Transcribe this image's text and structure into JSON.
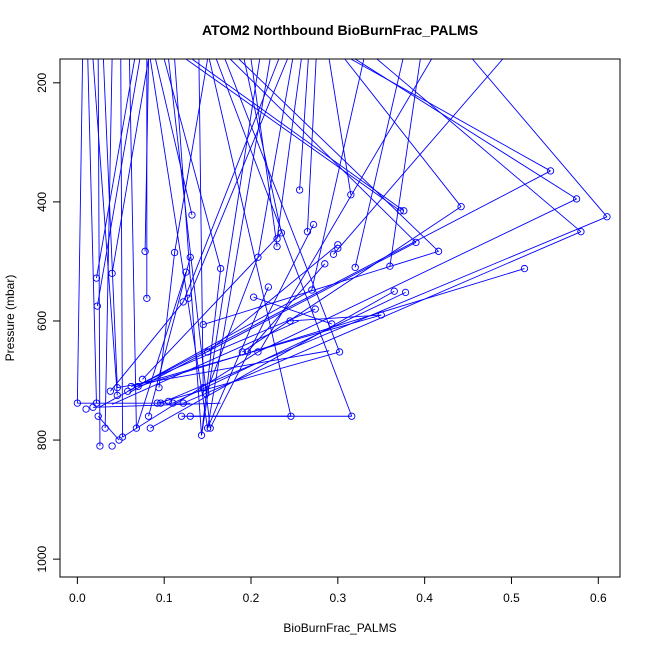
{
  "chart_data": {
    "type": "line",
    "title": "ATOM2 Northbound BioBurnFrac_PALMS",
    "xlabel": "BioBurnFrac_PALMS",
    "ylabel": "Pressure (mbar)",
    "xlim": [
      -0.02,
      0.625
    ],
    "ylim": [
      160,
      1030
    ],
    "y_reversed": true,
    "x_ticks": [
      "0.0",
      "0.1",
      "0.2",
      "0.3",
      "0.4",
      "0.5",
      "0.6"
    ],
    "x_tick_values": [
      0.0,
      0.1,
      0.2,
      0.3,
      0.4,
      0.5,
      0.6
    ],
    "y_ticks": [
      "200",
      "400",
      "600",
      "800",
      "1000"
    ],
    "y_tick_values": [
      200,
      400,
      600,
      800,
      1000
    ],
    "series_color": "#0000ff",
    "grid": false,
    "points": [
      [
        0.0,
        738
      ],
      [
        0.01,
        748
      ],
      [
        0.018,
        745
      ],
      [
        0.022,
        738
      ],
      [
        0.024,
        760
      ],
      [
        0.026,
        810
      ],
      [
        0.032,
        780
      ],
      [
        0.038,
        718
      ],
      [
        0.04,
        810
      ],
      [
        0.046,
        712
      ],
      [
        0.046,
        725
      ],
      [
        0.048,
        800
      ],
      [
        0.052,
        795
      ],
      [
        0.058,
        718
      ],
      [
        0.062,
        710
      ],
      [
        0.068,
        780
      ],
      [
        0.07,
        710
      ],
      [
        0.075,
        698
      ],
      [
        0.082,
        760
      ],
      [
        0.084,
        780
      ],
      [
        0.092,
        738
      ],
      [
        0.094,
        712
      ],
      [
        0.096,
        738
      ],
      [
        0.105,
        735
      ],
      [
        0.11,
        738
      ],
      [
        0.12,
        760
      ],
      [
        0.122,
        738
      ],
      [
        0.13,
        760
      ],
      [
        0.143,
        792
      ],
      [
        0.145,
        712
      ],
      [
        0.148,
        722
      ],
      [
        0.15,
        780
      ],
      [
        0.153,
        780
      ],
      [
        0.15,
        652
      ],
      [
        0.145,
        606
      ],
      [
        0.122,
        568
      ],
      [
        0.128,
        562
      ],
      [
        0.125,
        518
      ],
      [
        0.13,
        493
      ],
      [
        0.112,
        485
      ],
      [
        0.132,
        422
      ],
      [
        0.078,
        483
      ],
      [
        0.08,
        562
      ],
      [
        0.04,
        520
      ],
      [
        0.022,
        528
      ],
      [
        0.023,
        575
      ],
      [
        0.165,
        512
      ],
      [
        0.19,
        652
      ],
      [
        0.196,
        652
      ],
      [
        0.208,
        652
      ],
      [
        0.203,
        560
      ],
      [
        0.208,
        493
      ],
      [
        0.22,
        543
      ],
      [
        0.23,
        475
      ],
      [
        0.23,
        462
      ],
      [
        0.235,
        452
      ],
      [
        0.245,
        600
      ],
      [
        0.246,
        760
      ],
      [
        0.256,
        380
      ],
      [
        0.265,
        450
      ],
      [
        0.27,
        548
      ],
      [
        0.272,
        438
      ],
      [
        0.274,
        580
      ],
      [
        0.285,
        504
      ],
      [
        0.293,
        605
      ],
      [
        0.295,
        488
      ],
      [
        0.3,
        478
      ],
      [
        0.3,
        472
      ],
      [
        0.302,
        652
      ],
      [
        0.315,
        388
      ],
      [
        0.32,
        510
      ],
      [
        0.316,
        760
      ],
      [
        0.35,
        590
      ],
      [
        0.36,
        508
      ],
      [
        0.365,
        550
      ],
      [
        0.372,
        415
      ],
      [
        0.376,
        415
      ],
      [
        0.378,
        552
      ],
      [
        0.39,
        468
      ],
      [
        0.416,
        483
      ],
      [
        0.442,
        408
      ],
      [
        0.515,
        512
      ],
      [
        0.545,
        348
      ],
      [
        0.575,
        395
      ],
      [
        0.58,
        450
      ],
      [
        0.61,
        425
      ]
    ],
    "segments": [
      [
        [
          0.006,
          160
        ],
        [
          0.0,
          738
        ]
      ],
      [
        [
          0.012,
          160
        ],
        [
          0.022,
          738
        ]
      ],
      [
        [
          0.018,
          160
        ],
        [
          0.046,
          725
        ]
      ],
      [
        [
          0.024,
          160
        ],
        [
          0.026,
          810
        ]
      ],
      [
        [
          0.03,
          160
        ],
        [
          0.046,
          712
        ]
      ],
      [
        [
          0.04,
          160
        ],
        [
          0.032,
          780
        ]
      ],
      [
        [
          0.05,
          160
        ],
        [
          0.052,
          795
        ]
      ],
      [
        [
          0.06,
          160
        ],
        [
          0.068,
          780
        ]
      ],
      [
        [
          0.066,
          160
        ],
        [
          0.022,
          528
        ]
      ],
      [
        [
          0.072,
          160
        ],
        [
          0.023,
          575
        ]
      ],
      [
        [
          0.082,
          160
        ],
        [
          0.04,
          520
        ]
      ],
      [
        [
          0.08,
          160
        ],
        [
          0.08,
          562
        ]
      ],
      [
        [
          0.082,
          160
        ],
        [
          0.078,
          483
        ]
      ],
      [
        [
          0.084,
          160
        ],
        [
          0.15,
          780
        ]
      ],
      [
        [
          0.09,
          160
        ],
        [
          0.132,
          422
        ]
      ],
      [
        [
          0.1,
          160
        ],
        [
          0.165,
          512
        ]
      ],
      [
        [
          0.105,
          160
        ],
        [
          0.153,
          780
        ]
      ],
      [
        [
          0.112,
          160
        ],
        [
          0.143,
          792
        ]
      ],
      [
        [
          0.125,
          160
        ],
        [
          0.372,
          415
        ]
      ],
      [
        [
          0.132,
          160
        ],
        [
          0.376,
          415
        ]
      ],
      [
        [
          0.14,
          160
        ],
        [
          0.145,
          722
        ]
      ],
      [
        [
          0.15,
          160
        ],
        [
          0.112,
          485
        ]
      ],
      [
        [
          0.152,
          160
        ],
        [
          0.246,
          760
        ]
      ],
      [
        [
          0.16,
          160
        ],
        [
          0.316,
          760
        ]
      ],
      [
        [
          0.17,
          160
        ],
        [
          0.302,
          652
        ]
      ],
      [
        [
          0.176,
          160
        ],
        [
          0.39,
          468
        ]
      ],
      [
        [
          0.186,
          160
        ],
        [
          0.416,
          483
        ]
      ],
      [
        [
          0.192,
          160
        ],
        [
          0.235,
          452
        ]
      ],
      [
        [
          0.2,
          160
        ],
        [
          0.23,
          475
        ]
      ],
      [
        [
          0.21,
          160
        ],
        [
          0.143,
          792
        ]
      ],
      [
        [
          0.222,
          160
        ],
        [
          0.15,
          780
        ]
      ],
      [
        [
          0.232,
          160
        ],
        [
          0.122,
          568
        ]
      ],
      [
        [
          0.242,
          160
        ],
        [
          0.128,
          562
        ]
      ],
      [
        [
          0.248,
          160
        ],
        [
          0.208,
          493
        ]
      ],
      [
        [
          0.258,
          160
        ],
        [
          0.23,
          462
        ]
      ],
      [
        [
          0.266,
          160
        ],
        [
          0.256,
          380
        ]
      ],
      [
        [
          0.275,
          160
        ],
        [
          0.265,
          450
        ]
      ],
      [
        [
          0.29,
          160
        ],
        [
          0.315,
          388
        ]
      ],
      [
        [
          0.308,
          160
        ],
        [
          0.442,
          408
        ]
      ],
      [
        [
          0.315,
          160
        ],
        [
          0.545,
          348
        ]
      ],
      [
        [
          0.32,
          160
        ],
        [
          0.575,
          395
        ]
      ],
      [
        [
          0.33,
          160
        ],
        [
          0.27,
          548
        ]
      ],
      [
        [
          0.345,
          160
        ],
        [
          0.58,
          450
        ]
      ],
      [
        [
          0.375,
          160
        ],
        [
          0.32,
          510
        ]
      ],
      [
        [
          0.395,
          160
        ],
        [
          0.36,
          508
        ]
      ],
      [
        [
          0.408,
          160
        ],
        [
          0.21,
          650
        ]
      ],
      [
        [
          0.455,
          160
        ],
        [
          0.61,
          425
        ]
      ],
      [
        [
          0.49,
          160
        ],
        [
          0.295,
          488
        ]
      ],
      [
        [
          0.0,
          738
        ],
        [
          0.13,
          738
        ]
      ],
      [
        [
          0.018,
          745
        ],
        [
          0.165,
          738
        ]
      ],
      [
        [
          0.046,
          712
        ],
        [
          0.29,
          650
        ]
      ],
      [
        [
          0.058,
          718
        ],
        [
          0.545,
          348
        ]
      ],
      [
        [
          0.07,
          710
        ],
        [
          0.515,
          512
        ]
      ],
      [
        [
          0.084,
          780
        ],
        [
          0.365,
          550
        ]
      ],
      [
        [
          0.096,
          738
        ],
        [
          0.61,
          425
        ]
      ],
      [
        [
          0.11,
          738
        ],
        [
          0.378,
          552
        ]
      ],
      [
        [
          0.122,
          738
        ],
        [
          0.58,
          450
        ]
      ],
      [
        [
          0.13,
          760
        ],
        [
          0.316,
          760
        ]
      ],
      [
        [
          0.15,
          652
        ],
        [
          0.3,
          472
        ]
      ],
      [
        [
          0.145,
          606
        ],
        [
          0.416,
          483
        ]
      ],
      [
        [
          0.19,
          652
        ],
        [
          0.442,
          408
        ]
      ],
      [
        [
          0.203,
          560
        ],
        [
          0.293,
          605
        ]
      ],
      [
        [
          0.245,
          600
        ],
        [
          0.35,
          590
        ]
      ],
      [
        [
          0.208,
          652
        ],
        [
          0.575,
          395
        ]
      ],
      [
        [
          0.196,
          652
        ],
        [
          0.285,
          504
        ]
      ],
      [
        [
          0.08,
          700
        ],
        [
          0.274,
          580
        ]
      ],
      [
        [
          0.06,
          720
        ],
        [
          0.39,
          468
        ]
      ],
      [
        [
          0.092,
          738
        ],
        [
          0.302,
          652
        ]
      ],
      [
        [
          0.052,
          795
        ],
        [
          0.208,
          652
        ]
      ],
      [
        [
          0.12,
          760
        ],
        [
          0.246,
          760
        ]
      ],
      [
        [
          0.04,
          740
        ],
        [
          0.255,
          600
        ]
      ],
      [
        [
          0.025,
          745
        ],
        [
          0.27,
          548
        ]
      ],
      [
        [
          0.15,
          780
        ],
        [
          0.22,
          543
        ]
      ],
      [
        [
          0.153,
          780
        ],
        [
          0.272,
          438
        ]
      ],
      [
        [
          0.143,
          792
        ],
        [
          0.165,
          512
        ]
      ],
      [
        [
          0.148,
          722
        ],
        [
          0.208,
          493
        ]
      ],
      [
        [
          0.068,
          780
        ],
        [
          0.125,
          518
        ]
      ],
      [
        [
          0.082,
          760
        ],
        [
          0.13,
          493
        ]
      ],
      [
        [
          0.094,
          712
        ],
        [
          0.112,
          485
        ]
      ],
      [
        [
          0.075,
          698
        ],
        [
          0.235,
          452
        ]
      ],
      [
        [
          0.038,
          718
        ],
        [
          0.122,
          568
        ]
      ],
      [
        [
          0.024,
          760
        ],
        [
          0.048,
          800
        ]
      ],
      [
        [
          0.062,
          710
        ],
        [
          0.35,
          590
        ]
      ]
    ]
  }
}
